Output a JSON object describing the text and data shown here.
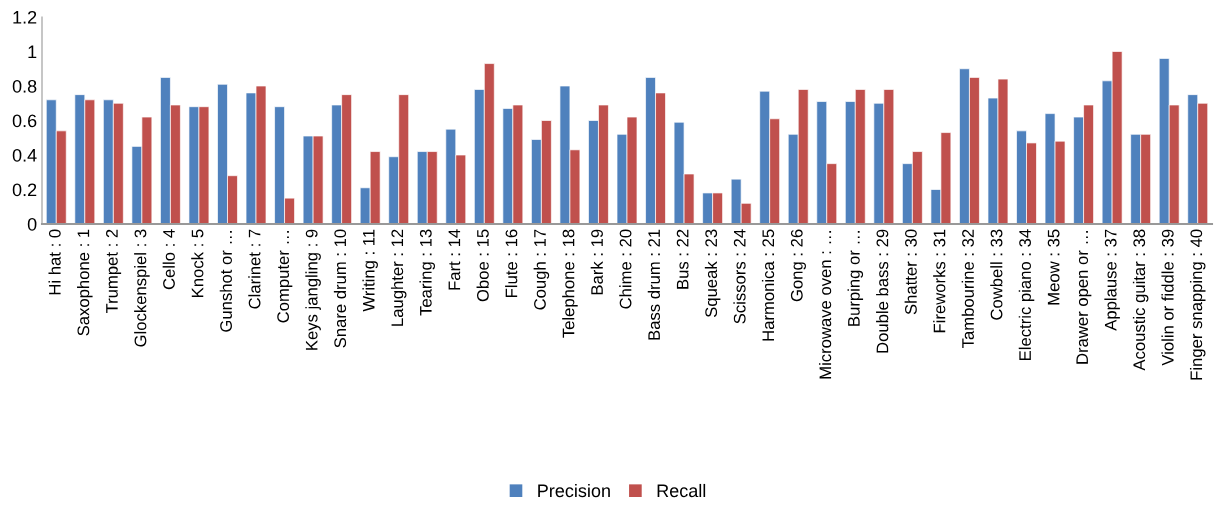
{
  "chart_data": {
    "type": "bar",
    "categories": [
      "Hi hat : 0",
      "Saxophone : 1",
      "Trumpet : 2",
      "Glockenspiel : 3",
      "Cello : 4",
      "Knock : 5",
      "Gunshot or …",
      "Clarinet : 7",
      "Computer …",
      "Keys jangling : 9",
      "Snare drum : 10",
      "Writing : 11",
      "Laughter : 12",
      "Tearing : 13",
      "Fart : 14",
      "Oboe : 15",
      "Flute : 16",
      "Cough : 17",
      "Telephone : 18",
      "Bark : 19",
      "Chime : 20",
      "Bass drum : 21",
      "Bus : 22",
      "Squeak : 23",
      "Scissors : 24",
      "Harmonica : 25",
      "Gong : 26",
      "Microwave oven : …",
      "Burping or …",
      "Double bass : 29",
      "Shatter : 30",
      "Fireworks : 31",
      "Tambourine : 32",
      "Cowbell : 33",
      "Electric piano : 34",
      "Meow : 35",
      "Drawer open or …",
      "Applause : 37",
      "Acoustic guitar : 38",
      "Violin or fiddle : 39",
      "Finger snapping : 40"
    ],
    "series": [
      {
        "name": "Precision",
        "color": "#4f81bd",
        "values": [
          0.72,
          0.75,
          0.72,
          0.45,
          0.85,
          0.68,
          0.81,
          0.76,
          0.68,
          0.51,
          0.69,
          0.21,
          0.39,
          0.42,
          0.55,
          0.78,
          0.67,
          0.49,
          0.8,
          0.6,
          0.52,
          0.85,
          0.59,
          0.18,
          0.26,
          0.77,
          0.52,
          0.71,
          0.71,
          0.7,
          0.35,
          0.2,
          0.9,
          0.73,
          0.54,
          0.64,
          0.62,
          0.83,
          0.52,
          0.96,
          0.75
        ]
      },
      {
        "name": "Recall",
        "color": "#c0504d",
        "values": [
          0.54,
          0.72,
          0.7,
          0.62,
          0.69,
          0.68,
          0.28,
          0.8,
          0.15,
          0.51,
          0.75,
          0.42,
          0.75,
          0.42,
          0.4,
          0.93,
          0.69,
          0.6,
          0.43,
          0.69,
          0.62,
          0.76,
          0.29,
          0.18,
          0.12,
          0.61,
          0.78,
          0.35,
          0.78,
          0.78,
          0.42,
          0.53,
          0.85,
          0.84,
          0.47,
          0.48,
          0.69,
          1.0,
          0.52,
          0.69,
          0.7
        ]
      }
    ],
    "ylim": [
      0,
      1.2
    ],
    "yticks": [
      0,
      0.2,
      0.4,
      0.6,
      0.8,
      1,
      1.2
    ],
    "grid": false,
    "legend": "bottom"
  }
}
